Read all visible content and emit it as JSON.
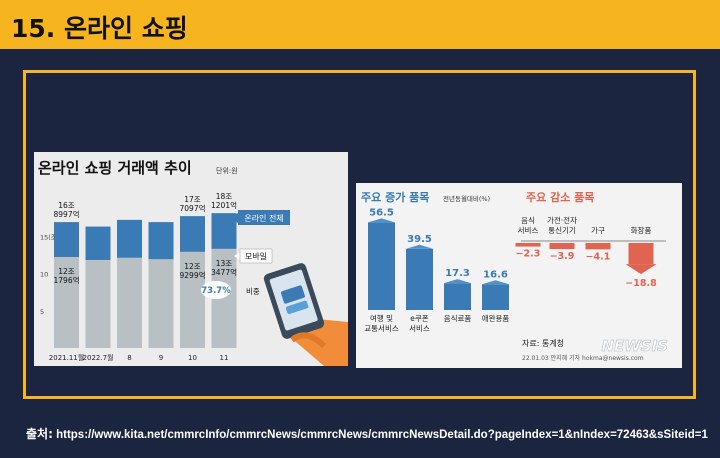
{
  "header": {
    "title": "15. 온라인 쇼핑"
  },
  "left_chart": {
    "title": "온라인 쇼핑 거래액 추이",
    "unit": "단위:원",
    "legend": {
      "total": "온라인 전체",
      "mobile": "모바일",
      "ratio": "비중"
    },
    "y_ticks": [
      "15(조)",
      "10",
      "5"
    ]
  },
  "right_chart": {
    "increase_title": "주요 증가 품목",
    "increase_note": "전년동월대비(%)",
    "decrease_title": "주요 감소 품목",
    "credit_source": "자료: 통계청",
    "credit_line": "22.01.03 안지혜 기자 hokma@newsis.com",
    "watermark": "NEWSIS"
  },
  "source": {
    "label": "출처:",
    "url": "https://www.kita.net/cmmrcInfo/cmmrcNews/cmmrcNews/cmmrcNewsDetail.do?pageIndex=1&nIndex=72463&sSiteid=1"
  },
  "colors": {
    "header": "#f6b51e",
    "background": "#1b2540",
    "total_bar": "#3a7bb5",
    "mobile_bar": "#b8c0c4",
    "increase": "#3a7bb5",
    "decrease": "#e06450"
  },
  "chart_data": [
    {
      "type": "bar",
      "title": "온라인 쇼핑 거래액 추이",
      "categories": [
        "2021.11월",
        "2022.7월",
        "8",
        "9",
        "10",
        "11"
      ],
      "y_unit": "조 원",
      "ylim": [
        0,
        20
      ],
      "series": [
        {
          "name": "온라인 전체",
          "values": [
            16.9,
            16.3,
            17.2,
            16.9,
            17.7,
            18.1
          ]
        },
        {
          "name": "모바일",
          "values": [
            12.2,
            11.8,
            12.1,
            11.9,
            12.9,
            13.3
          ]
        }
      ],
      "data_labels": {
        "total": [
          {
            "category": "2021.11월",
            "text": [
              "16조",
              "8997억"
            ]
          },
          {
            "category": "10",
            "text": [
              "17조",
              "7097억"
            ]
          },
          {
            "category": "11",
            "text": [
              "18조",
              "1201억"
            ]
          }
        ],
        "mobile": [
          {
            "category": "2021.11월",
            "text": [
              "12조",
              "1796억"
            ]
          },
          {
            "category": "10",
            "text": [
              "12조",
              "9299억"
            ]
          },
          {
            "category": "11",
            "text": [
              "13조",
              "3477억"
            ]
          }
        ],
        "ratio": "73.7%"
      }
    },
    {
      "type": "bar",
      "title": "주요 증가 품목",
      "ylabel": "전년동월대비(%)",
      "categories": [
        "여행 및 교통서비스",
        "e쿠폰 서비스",
        "음식료품",
        "애완용품"
      ],
      "values": [
        56.5,
        39.5,
        17.3,
        16.6
      ],
      "value_labels": [
        "56.5",
        "39.5",
        "17.3",
        "16.6"
      ]
    },
    {
      "type": "bar",
      "title": "주요 감소 품목",
      "categories": [
        "음식 서비스",
        "가전·전자 통신기기",
        "가구",
        "화장품"
      ],
      "values": [
        -2.3,
        -3.9,
        -4.1,
        -18.8
      ],
      "value_labels": [
        "−2.3",
        "−3.9",
        "−4.1",
        "−18.8"
      ]
    }
  ]
}
